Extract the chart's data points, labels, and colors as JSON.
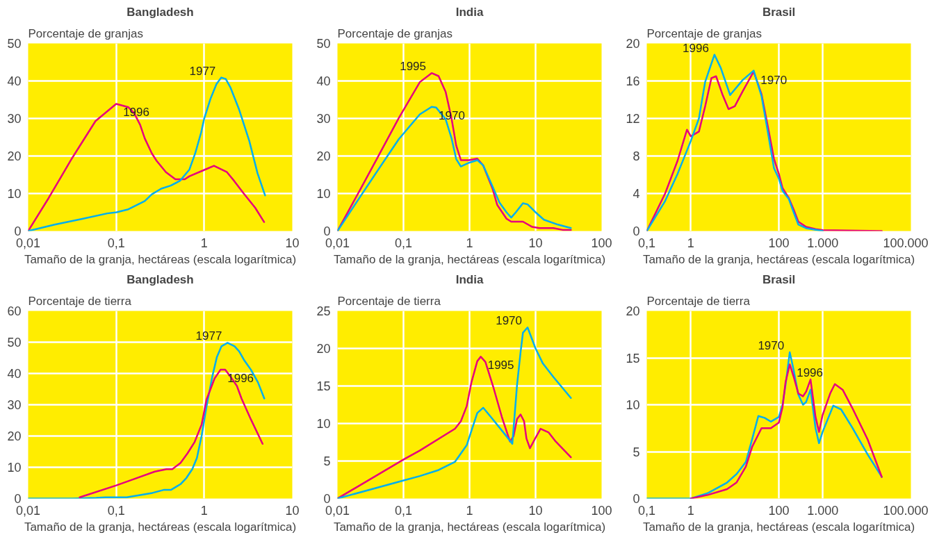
{
  "chart_data": [
    {
      "type": "line",
      "title": "Bangladesh",
      "ylabel": "Porcentaje de granjas",
      "xlabel": "Tamaño de la granja, hectáreas (escala logarítmica)",
      "log": "x",
      "grid": true,
      "xlim": [
        0.01,
        10
      ],
      "xticks": [
        {
          "value": 0.01,
          "label": "0,01"
        },
        {
          "value": 0.1,
          "label": "0,1"
        },
        1,
        10
      ],
      "ylim": [
        0,
        50
      ],
      "yticks": [
        0,
        10,
        20,
        30,
        40,
        50
      ],
      "series": [
        {
          "name": "1996",
          "color": "#e6007e",
          "x": [
            0.01,
            0.0171,
            0.0315,
            0.0582,
            0.1,
            0.1375,
            0.16,
            0.187,
            0.211,
            0.254,
            0.288,
            0.367,
            0.47,
            0.601,
            0.679,
            0.982,
            1.29,
            1.81,
            2.18,
            2.79,
            3.79,
            4.79
          ],
          "values": [
            0,
            8.8,
            19.4,
            29.3,
            33.9,
            33,
            31.4,
            28.3,
            24.7,
            20.7,
            18.7,
            15.7,
            13.8,
            13.8,
            14.6,
            16.2,
            17.4,
            15.7,
            13.4,
            10.1,
            6.2,
            2.4
          ]
        },
        {
          "name": "1977",
          "color": "#00aeef",
          "x": [
            0.01,
            0.02,
            0.0403,
            0.0792,
            0.101,
            0.1375,
            0.211,
            0.254,
            0.325,
            0.416,
            0.531,
            0.679,
            0.792,
            0.923,
            1.0,
            1.18,
            1.38,
            1.56,
            1.76,
            1.99,
            2.47,
            3.25,
            4.03,
            4.91
          ],
          "values": [
            0,
            1.7,
            3.2,
            4.7,
            5.0,
            5.8,
            8.0,
            9.8,
            11.3,
            12.1,
            13.4,
            16.4,
            20.8,
            26.3,
            30,
            35.3,
            39.2,
            40.9,
            40.5,
            38.2,
            32.6,
            24.0,
            15.4,
            9.5
          ]
        }
      ],
      "legend": false
    },
    {
      "type": "line",
      "title": "India",
      "ylabel": "Porcentaje de granjas",
      "xlabel": "Tamaño de la granja, hectáreas (escala logarítmica)",
      "log": "x",
      "grid": true,
      "xlim": [
        0.01,
        100
      ],
      "xticks": [
        {
          "value": 0.01,
          "label": "0,01"
        },
        {
          "value": 0.1,
          "label": "0,1"
        },
        1,
        10,
        100
      ],
      "ylim": [
        0,
        50
      ],
      "yticks": [
        0,
        10,
        20,
        30,
        40,
        50
      ],
      "series": [
        {
          "name": "1995",
          "color": "#e6007e",
          "x": [
            0.01,
            0.023,
            0.0375,
            0.0849,
            0.177,
            0.267,
            0.34,
            0.435,
            0.533,
            0.628,
            0.739,
            0.984,
            1.31,
            1.61,
            2.23,
            2.62,
            3.63,
            4.28,
            6.44,
            8.91,
            11.4,
            18.6,
            25.8,
            34.3
          ],
          "values": [
            0,
            11.6,
            18.5,
            30.1,
            39.7,
            42.1,
            41.3,
            37.1,
            30.1,
            22.8,
            18.9,
            18.9,
            19.3,
            17.5,
            11.3,
            7.0,
            3.3,
            2.5,
            2.5,
            1.1,
            0.8,
            0.8,
            0.3,
            0.3
          ]
        },
        {
          "name": "1970",
          "color": "#00aeef",
          "x": [
            0.01,
            0.023,
            0.0375,
            0.0849,
            0.177,
            0.267,
            0.313,
            0.435,
            0.533,
            0.628,
            0.739,
            0.984,
            1.31,
            1.61,
            2.23,
            2.84,
            3.63,
            4.28,
            5.03,
            6.44,
            7.57,
            10,
            13.4,
            21.9,
            34.3
          ],
          "values": [
            0,
            9.6,
            15.2,
            24.5,
            31.1,
            33.1,
            32.9,
            29.8,
            24.8,
            19.2,
            17.2,
            18.2,
            18.9,
            17.5,
            11.9,
            7.6,
            5.0,
            3.6,
            5.0,
            7.4,
            7.1,
            5.0,
            3.0,
            1.7,
            0.8
          ]
        }
      ],
      "legend": false
    },
    {
      "type": "line",
      "title": "Brasil",
      "ylabel": "Porcentaje de granjas",
      "xlabel": "Tamaño de la granja, hectáreas (escala logarítmica)",
      "log": "x",
      "grid": true,
      "xlim": [
        0.1,
        100000
      ],
      "xticks": [
        {
          "value": 0.1,
          "label": "0,1"
        },
        1,
        100,
        {
          "value": 1000,
          "label": "1.000"
        },
        {
          "value": 100000,
          "label": "100.000"
        }
      ],
      "ylim": [
        0,
        20
      ],
      "yticks": [
        0,
        4,
        8,
        12,
        16,
        20
      ],
      "series": [
        {
          "name": "1970",
          "color": "#e6007e",
          "x": [
            0.1,
            0.261,
            0.501,
            0.82,
            1,
            1.53,
            2.12,
            2.94,
            3.75,
            5.2,
            7.21,
            10,
            15.1,
            26.8,
            40.4,
            56.0,
            77.6,
            100,
            121,
            169,
            217,
            277,
            417,
            682,
            1000,
            21800
          ],
          "values": [
            0,
            4.0,
            7.5,
            10.8,
            10.1,
            10.6,
            13.3,
            16.3,
            16.5,
            14.6,
            13.0,
            13.3,
            14.9,
            17.0,
            14.6,
            11.2,
            7.7,
            6.1,
            4.6,
            3.5,
            2.3,
            1.0,
            0.45,
            0.2,
            0.1,
            0
          ]
        },
        {
          "name": "1996",
          "color": "#00aeef",
          "x": [
            0.1,
            0.261,
            0.501,
            1,
            1.53,
            2.12,
            3.45,
            4.79,
            7.83,
            15.1,
            26.8,
            40.4,
            56.0,
            77.6,
            100,
            121,
            169,
            217,
            277,
            417,
            1000
          ],
          "values": [
            0,
            3.2,
            6.1,
            9.6,
            12.0,
            15.9,
            18.8,
            17.4,
            14.5,
            16.1,
            17.1,
            14.4,
            10.6,
            6.7,
            5.6,
            4.3,
            3.4,
            2.0,
            0.7,
            0.3,
            0
          ]
        }
      ],
      "legend": false
    },
    {
      "type": "line",
      "title": "Bangladesh",
      "ylabel": "Porcentaje de tierra",
      "xlabel": "Tamaño de la granja, hectáreas (escala logarítmica)",
      "log": "x",
      "grid": true,
      "xlim": [
        0.01,
        10
      ],
      "xticks": [
        {
          "value": 0.01,
          "label": "0,01"
        },
        {
          "value": 0.1,
          "label": "0,1"
        },
        1,
        10
      ],
      "ylim": [
        0,
        60
      ],
      "yticks": [
        0,
        10,
        20,
        30,
        40,
        50,
        60
      ],
      "series": [
        {
          "name": "1977",
          "color": "#00aeef",
          "x": [
            0.01,
            0.0321,
            0.0592,
            0.0757,
            0.1314,
            0.258,
            0.351,
            0.421,
            0.538,
            0.628,
            0.731,
            0.826,
            0.935,
            1.06,
            1.23,
            1.39,
            1.57,
            1.84,
            2.21,
            2.49,
            2.82,
            3.39,
            4.07,
            4.81
          ],
          "values": [
            0,
            0,
            0.2,
            0.4,
            0.4,
            1.8,
            2.8,
            2.8,
            4.6,
            6.6,
            9.4,
            13.0,
            20.1,
            29.3,
            38.8,
            45.2,
            48.7,
            49.8,
            48.7,
            47.1,
            44.4,
            41.2,
            37.2,
            32.0
          ]
        },
        {
          "name": "1996",
          "color": "#e6007e",
          "x": [
            0.0385,
            0.1,
            0.158,
            0.274,
            0.372,
            0.434,
            0.538,
            0.647,
            0.778,
            0.935,
            1.06,
            1.31,
            1.53,
            1.73,
            2.01,
            2.35,
            2.65,
            3.39,
            4.6
          ],
          "values": [
            0.4,
            4.2,
            6.2,
            8.6,
            9.4,
            9.4,
            11.4,
            14.5,
            18.1,
            23.7,
            31.6,
            38.4,
            41.2,
            41.2,
            38.8,
            36.0,
            32.0,
            25.3,
            17.5
          ]
        }
      ],
      "legend": false
    },
    {
      "type": "line",
      "title": "India",
      "ylabel": "Porcentaje de tierra",
      "xlabel": "Tamaño de la granja, hectáreas (escala logarítmica)",
      "log": "x",
      "grid": true,
      "xlim": [
        0.01,
        100
      ],
      "xticks": [
        {
          "value": 0.01,
          "label": "0,01"
        },
        {
          "value": 0.1,
          "label": "0,1"
        },
        1,
        10,
        100
      ],
      "ylim": [
        0,
        25
      ],
      "yticks": [
        0,
        5,
        10,
        15,
        20,
        25
      ],
      "series": [
        {
          "name": "1995",
          "color": "#e6007e",
          "x": [
            0.01,
            0.1,
            0.177,
            0.603,
            0.739,
            0.906,
            1.07,
            1.31,
            1.48,
            1.74,
            2.32,
            3.08,
            4.1,
            4.64,
            5.25,
            5.93,
            6.7,
            7.28,
            8.22,
            10,
            11.9,
            15.8,
            20.2,
            34.3
          ],
          "values": [
            0,
            5.2,
            6.4,
            9.3,
            10.3,
            12.3,
            15.5,
            18.3,
            18.9,
            18.2,
            14.7,
            10.9,
            7.6,
            8.3,
            10.6,
            11.2,
            10.3,
            8.0,
            6.7,
            8.1,
            9.3,
            8.8,
            7.6,
            5.5
          ]
        },
        {
          "name": "1970",
          "color": "#00aeef",
          "x": [
            0.01,
            0.1,
            0.177,
            0.34,
            0.603,
            0.906,
            1.31,
            1.61,
            2.23,
            3.63,
            4.45,
            5.25,
            5.93,
            6.44,
            7.57,
            10,
            12.9,
            18.6,
            34.3
          ],
          "values": [
            0,
            2.4,
            3.0,
            3.8,
            4.9,
            7.1,
            11.4,
            12.1,
            10.6,
            8.3,
            7.3,
            15.2,
            19.5,
            22.1,
            22.8,
            20.0,
            18.0,
            16.2,
            13.4
          ]
        }
      ],
      "legend": false
    },
    {
      "type": "line",
      "title": "Brasil",
      "ylabel": "Porcentaje de tierra",
      "xlabel": "Tamaño de la granja, hectáreas (escala logarítmica)",
      "log": "x",
      "grid": true,
      "xlim": [
        0.1,
        100000
      ],
      "xticks": [
        {
          "value": 0.1,
          "label": "0,1"
        },
        1,
        100,
        {
          "value": 1000,
          "label": "1.000"
        },
        {
          "value": 100000,
          "label": "100.000"
        }
      ],
      "ylim": [
        0,
        20
      ],
      "yticks": [
        0,
        5,
        10,
        15,
        20
      ],
      "series": [
        {
          "name": "1970",
          "color": "#00aeef",
          "x": [
            0.1,
            1,
            2.49,
            6.66,
            10.9,
            17.8,
            24.7,
            34.2,
            47.5,
            65.8,
            100,
            121,
            142,
            177,
            217,
            277,
            354,
            417,
            525,
            682,
            817,
            986,
            1722,
            2594,
            4613,
            10420,
            21800
          ],
          "values": [
            0,
            0,
            0.6,
            1.7,
            2.6,
            3.9,
            6.3,
            8.8,
            8.6,
            8.2,
            8.7,
            10.0,
            12.1,
            15.6,
            13.7,
            11.1,
            10.0,
            10.3,
            11.6,
            7.5,
            5.9,
            7.1,
            9.9,
            9.5,
            7.6,
            4.7,
            2.3
          ]
        },
        {
          "name": "1996",
          "color": "#e6007e",
          "x": [
            1,
            2.49,
            6.66,
            10.9,
            17.8,
            24.7,
            40.4,
            65.8,
            100,
            121,
            142,
            177,
            217,
            277,
            354,
            417,
            525,
            682,
            817,
            986,
            1466,
            1871,
            2818,
            4613,
            10420,
            21800
          ],
          "values": [
            0,
            0.4,
            1.0,
            1.7,
            3.4,
            5.5,
            7.5,
            7.5,
            8.1,
            9.7,
            12.4,
            14.3,
            13.0,
            11.2,
            10.9,
            11.4,
            12.7,
            8.7,
            7.1,
            8.9,
            11.2,
            12.2,
            11.6,
            9.7,
            6.3,
            2.3
          ]
        }
      ],
      "legend": false
    }
  ]
}
